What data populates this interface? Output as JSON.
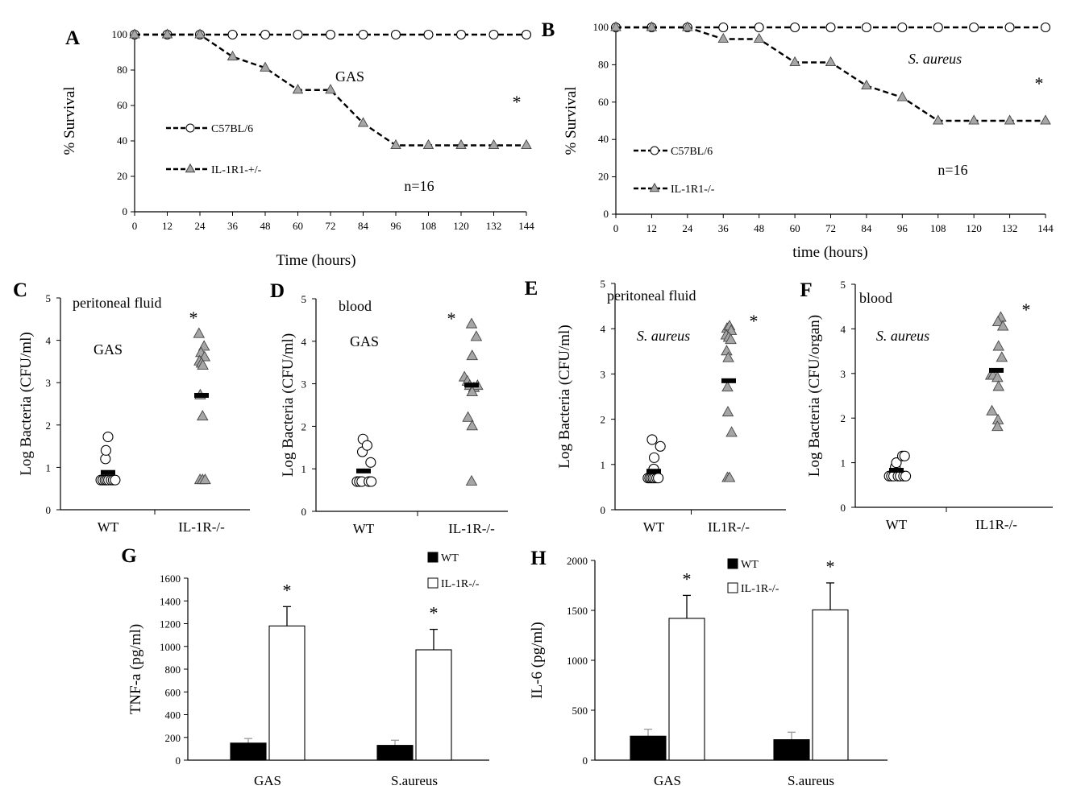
{
  "chart_data": [
    {
      "panel": "A",
      "type": "line",
      "title": "GAS",
      "xlabel": "Time (hours)",
      "ylabel": "% Survival",
      "x": [
        0,
        12,
        24,
        36,
        48,
        60,
        72,
        84,
        96,
        108,
        120,
        132,
        144
      ],
      "xlim": [
        0,
        144
      ],
      "ylim": [
        0,
        100
      ],
      "xticks": [
        "0",
        "12",
        "24",
        "36",
        "48",
        "60",
        "72",
        "84",
        "96",
        "108",
        "120",
        "132",
        "144"
      ],
      "yticks": [
        "0",
        "20",
        "40",
        "60",
        "80",
        "100"
      ],
      "series": [
        {
          "name": "C57BL/6",
          "marker": "circle",
          "values": [
            100,
            100,
            100,
            100,
            100,
            100,
            100,
            100,
            100,
            100,
            100,
            100,
            100
          ]
        },
        {
          "name": "IL-1R1-+/-",
          "marker": "triangle",
          "values": [
            100,
            100,
            100,
            87.5,
            81.25,
            68.75,
            68.75,
            50,
            37.5,
            37.5,
            37.5,
            37.5,
            37.5
          ]
        }
      ],
      "annotations": {
        "n": "n=16",
        "star": "*"
      }
    },
    {
      "panel": "B",
      "type": "line",
      "title": "S. aureus",
      "xlabel": "time (hours)",
      "ylabel": "% Survival",
      "x": [
        0,
        12,
        24,
        36,
        48,
        60,
        72,
        84,
        96,
        108,
        120,
        132,
        144
      ],
      "xlim": [
        0,
        144
      ],
      "ylim": [
        0,
        100
      ],
      "xticks": [
        "0",
        "12",
        "24",
        "36",
        "48",
        "60",
        "72",
        "84",
        "96",
        "108",
        "120",
        "132",
        "144"
      ],
      "yticks": [
        "0",
        "20",
        "40",
        "60",
        "80",
        "100"
      ],
      "series": [
        {
          "name": "C57BL/6",
          "marker": "circle",
          "values": [
            100,
            100,
            100,
            100,
            100,
            100,
            100,
            100,
            100,
            100,
            100,
            100,
            100
          ]
        },
        {
          "name": "IL-1R1-/-",
          "marker": "triangle",
          "values": [
            100,
            100,
            100,
            93.75,
            93.75,
            81.25,
            81.25,
            68.75,
            62.5,
            50,
            50,
            50,
            50
          ]
        }
      ],
      "annotations": {
        "n": "n=16",
        "star": "*"
      }
    },
    {
      "panel": "C",
      "type": "scatter",
      "title": "peritoneal fluid",
      "subtitle": "GAS",
      "ylabel": "Log Bacteria (CFU/ml)",
      "ylim": [
        0,
        5
      ],
      "yticks": [
        "0",
        "1",
        "2",
        "3",
        "4",
        "5"
      ],
      "categories": [
        "WT",
        "IL-1R-/-"
      ],
      "groups": [
        {
          "name": "WT",
          "marker": "circle",
          "mean": 0.88,
          "points": [
            [
              -0.28,
              0.7
            ],
            [
              -0.2,
              0.7
            ],
            [
              -0.12,
              0.7
            ],
            [
              -0.05,
              0.7
            ],
            [
              0.02,
              0.7
            ],
            [
              -0.1,
              1.2
            ],
            [
              -0.08,
              1.4
            ],
            [
              0.0,
              1.72
            ],
            [
              0.12,
              0.7
            ],
            [
              0.2,
              0.7
            ],
            [
              0.28,
              0.7
            ]
          ]
        },
        {
          "name": "IL-1R-/-",
          "marker": "triangle",
          "mean": 2.7,
          "points": [
            [
              -0.1,
              4.15
            ],
            [
              0.1,
              3.85
            ],
            [
              -0.02,
              3.7
            ],
            [
              0.12,
              3.6
            ],
            [
              -0.08,
              3.5
            ],
            [
              0.0,
              3.45
            ],
            [
              0.05,
              3.4
            ],
            [
              -0.05,
              2.7
            ],
            [
              0.04,
              2.2
            ],
            [
              -0.06,
              0.7
            ],
            [
              0.04,
              0.7
            ],
            [
              0.14,
              0.7
            ]
          ]
        }
      ],
      "annotations": {
        "star": "*"
      }
    },
    {
      "panel": "D",
      "type": "scatter",
      "title": "blood",
      "subtitle": "GAS",
      "ylabel": "Log Bacteria (CFU/ml)",
      "ylim": [
        0,
        5
      ],
      "yticks": [
        "0",
        "1",
        "2",
        "3",
        "4",
        "5"
      ],
      "categories": [
        "WT",
        "IL-1R-/-"
      ],
      "groups": [
        {
          "name": "WT",
          "marker": "circle",
          "mean": 0.95,
          "points": [
            [
              -0.22,
              0.7
            ],
            [
              -0.14,
              0.7
            ],
            [
              -0.06,
              0.7
            ],
            [
              -0.02,
              1.7
            ],
            [
              -0.04,
              1.4
            ],
            [
              0.12,
              1.55
            ],
            [
              0.24,
              1.15
            ],
            [
              0.18,
              0.7
            ],
            [
              0.26,
              0.7
            ]
          ]
        },
        {
          "name": "IL-1R-/-",
          "marker": "triangle",
          "mean": 2.97,
          "points": [
            [
              0.0,
              4.4
            ],
            [
              0.16,
              4.1
            ],
            [
              0.02,
              3.65
            ],
            [
              -0.24,
              3.15
            ],
            [
              -0.14,
              3.05
            ],
            [
              -0.06,
              2.95
            ],
            [
              0.08,
              2.9
            ],
            [
              0.2,
              2.95
            ],
            [
              0.02,
              2.8
            ],
            [
              -0.12,
              2.2
            ],
            [
              0.02,
              2.0
            ],
            [
              0.0,
              0.7
            ]
          ]
        }
      ],
      "annotations": {
        "star": "*"
      }
    },
    {
      "panel": "E",
      "type": "scatter",
      "title": "peritoneal fluid",
      "subtitle": "S. aureus",
      "ylabel": "Log Bacteria (CFU/ml)",
      "ylim": [
        0,
        5
      ],
      "yticks": [
        "0",
        "1",
        "2",
        "3",
        "4",
        "5"
      ],
      "categories": [
        "WT",
        "IL1R-/-"
      ],
      "groups": [
        {
          "name": "WT",
          "marker": "circle",
          "mean": 0.85,
          "points": [
            [
              -0.28,
              0.7
            ],
            [
              -0.2,
              0.7
            ],
            [
              -0.12,
              0.7
            ],
            [
              -0.04,
              0.7
            ],
            [
              0.04,
              0.7
            ],
            [
              -0.08,
              1.55
            ],
            [
              0.02,
              1.15
            ],
            [
              0.0,
              0.9
            ],
            [
              0.14,
              0.7
            ],
            [
              0.22,
              0.7
            ],
            [
              0.32,
              1.4
            ]
          ]
        },
        {
          "name": "IL1R-/-",
          "marker": "triangle",
          "mean": 2.85,
          "points": [
            [
              -0.08,
              4.0
            ],
            [
              0.04,
              4.05
            ],
            [
              0.12,
              3.95
            ],
            [
              -0.12,
              3.85
            ],
            [
              0.0,
              3.8
            ],
            [
              0.1,
              3.75
            ],
            [
              -0.1,
              3.5
            ],
            [
              -0.02,
              3.35
            ],
            [
              -0.06,
              2.7
            ],
            [
              -0.04,
              2.15
            ],
            [
              0.14,
              1.7
            ],
            [
              -0.06,
              0.7
            ],
            [
              0.04,
              0.7
            ]
          ]
        }
      ],
      "annotations": {
        "star": "*"
      }
    },
    {
      "panel": "F",
      "type": "scatter",
      "title": "blood",
      "subtitle": "S. aureus",
      "ylabel": "Log Bacteria (CFU/organ)",
      "ylim": [
        0,
        5
      ],
      "yticks": [
        "0",
        "1",
        "2",
        "3",
        "4",
        "5"
      ],
      "categories": [
        "WT",
        "IL1R-/-"
      ],
      "groups": [
        {
          "name": "WT",
          "marker": "circle",
          "mean": 0.83,
          "points": [
            [
              -0.26,
              0.7
            ],
            [
              -0.18,
              0.7
            ],
            [
              -0.1,
              0.7
            ],
            [
              -0.04,
              0.9
            ],
            [
              0.0,
              1.0
            ],
            [
              0.06,
              0.7
            ],
            [
              0.14,
              0.7
            ],
            [
              0.22,
              1.15
            ],
            [
              0.3,
              1.15
            ],
            [
              0.26,
              0.7
            ],
            [
              0.34,
              0.7
            ]
          ]
        },
        {
          "name": "IL1R-/-",
          "marker": "triangle",
          "mean": 3.07,
          "points": [
            [
              0.16,
              4.25
            ],
            [
              0.06,
              4.15
            ],
            [
              0.24,
              4.05
            ],
            [
              0.08,
              3.6
            ],
            [
              0.2,
              3.35
            ],
            [
              -0.2,
              2.95
            ],
            [
              -0.12,
              2.95
            ],
            [
              0.04,
              2.9
            ],
            [
              0.08,
              2.7
            ],
            [
              -0.16,
              2.15
            ],
            [
              0.06,
              1.95
            ],
            [
              0.04,
              1.8
            ]
          ]
        }
      ],
      "annotations": {
        "star": "*"
      }
    },
    {
      "panel": "G",
      "type": "bar",
      "ylabel": "TNF-a (pg/ml)",
      "ylim": [
        0,
        1600
      ],
      "yticks": [
        "0",
        "200",
        "400",
        "600",
        "800",
        "1000",
        "1200",
        "1400",
        "1600"
      ],
      "categories": [
        "GAS",
        "S.aureus"
      ],
      "series": [
        {
          "name": "WT",
          "color": "#000000",
          "values": [
            150,
            130
          ],
          "errors": [
            40,
            45
          ]
        },
        {
          "name": "IL-1R-/-",
          "color": "#ffffff",
          "values": [
            1180,
            970
          ],
          "errors": [
            170,
            180
          ]
        }
      ],
      "annotations": {
        "star": "*"
      }
    },
    {
      "panel": "H",
      "type": "bar",
      "ylabel": "IL-6 (pg/ml)",
      "ylim": [
        0,
        2000
      ],
      "yticks": [
        "0",
        "500",
        "1000",
        "1500",
        "2000"
      ],
      "categories": [
        "GAS",
        "S.aureus"
      ],
      "series": [
        {
          "name": "WT",
          "color": "#000000",
          "values": [
            240,
            205
          ],
          "errors": [
            70,
            75
          ]
        },
        {
          "name": "IL-1R-/-",
          "color": "#ffffff",
          "values": [
            1420,
            1505
          ],
          "errors": [
            230,
            270
          ]
        }
      ],
      "annotations": {
        "star": "*"
      }
    }
  ]
}
